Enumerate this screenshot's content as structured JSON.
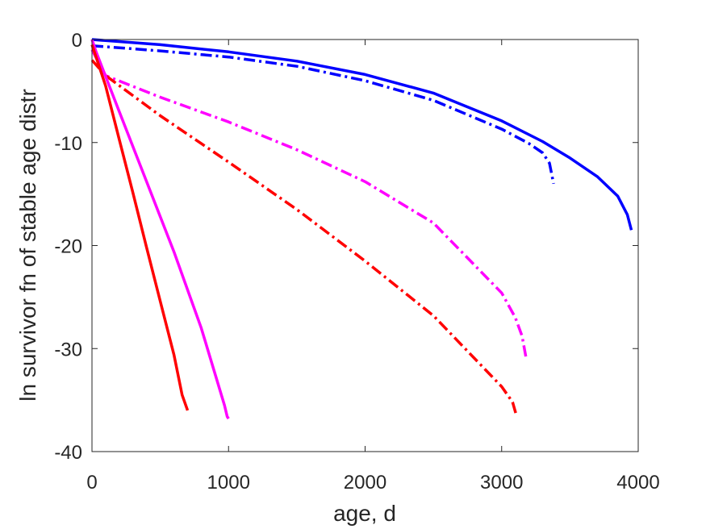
{
  "chart_data": {
    "type": "line",
    "title": "",
    "xlabel": "age, d",
    "ylabel": "ln survivor fn of stable age distr",
    "xlim": [
      0,
      4000
    ],
    "ylim": [
      -40,
      0
    ],
    "xticks": [
      0,
      1000,
      2000,
      3000,
      4000
    ],
    "yticks": [
      0,
      -10,
      -20,
      -30,
      -40
    ],
    "xtick_labels": [
      "0",
      "1000",
      "2000",
      "3000",
      "4000"
    ],
    "ytick_labels": [
      "0",
      "-10",
      "-20",
      "-30",
      "-40"
    ],
    "grid": false,
    "legend": "none",
    "series": [
      {
        "color": "#0000FF",
        "style": "solid",
        "points": [
          [
            0,
            0
          ],
          [
            500,
            -0.5
          ],
          [
            1000,
            -1.2
          ],
          [
            1500,
            -2.1
          ],
          [
            2000,
            -3.4
          ],
          [
            2500,
            -5.2
          ],
          [
            3000,
            -7.9
          ],
          [
            3300,
            -9.9
          ],
          [
            3500,
            -11.5
          ],
          [
            3700,
            -13.3
          ],
          [
            3850,
            -15.2
          ],
          [
            3920,
            -17.0
          ],
          [
            3950,
            -18.5
          ]
        ]
      },
      {
        "color": "#0000FF",
        "style": "dashdot",
        "points": [
          [
            0,
            -0.6
          ],
          [
            500,
            -1.1
          ],
          [
            1000,
            -1.7
          ],
          [
            1500,
            -2.6
          ],
          [
            2000,
            -4.0
          ],
          [
            2500,
            -5.9
          ],
          [
            3000,
            -8.7
          ],
          [
            3200,
            -10.1
          ],
          [
            3300,
            -11.0
          ],
          [
            3350,
            -12.0
          ],
          [
            3380,
            -14.0
          ]
        ]
      },
      {
        "color": "#FF00FF",
        "style": "dashdot",
        "points": [
          [
            0,
            -1.0
          ],
          [
            100,
            -3.5
          ],
          [
            500,
            -5.6
          ],
          [
            1000,
            -8.0
          ],
          [
            1500,
            -10.7
          ],
          [
            2000,
            -13.8
          ],
          [
            2500,
            -17.8
          ],
          [
            3000,
            -24.6
          ],
          [
            3100,
            -27.0
          ],
          [
            3150,
            -28.8
          ],
          [
            3180,
            -31.0
          ]
        ]
      },
      {
        "color": "#FF0000",
        "style": "dashdot",
        "points": [
          [
            0,
            -2.0
          ],
          [
            100,
            -3.5
          ],
          [
            500,
            -7.4
          ],
          [
            1000,
            -11.9
          ],
          [
            1500,
            -16.5
          ],
          [
            2000,
            -21.5
          ],
          [
            2500,
            -26.8
          ],
          [
            3000,
            -33.7
          ],
          [
            3080,
            -35.2
          ],
          [
            3110,
            -36.6
          ]
        ]
      },
      {
        "color": "#FF00FF",
        "style": "solid",
        "points": [
          [
            0,
            0
          ],
          [
            30,
            -1.2
          ],
          [
            200,
            -7.0
          ],
          [
            400,
            -13.8
          ],
          [
            600,
            -20.6
          ],
          [
            800,
            -28.0
          ],
          [
            970,
            -35.5
          ],
          [
            990,
            -36.6
          ],
          [
            1000,
            -36.8
          ]
        ]
      },
      {
        "color": "#FF0000",
        "style": "solid",
        "points": [
          [
            0,
            -0.5
          ],
          [
            100,
            -4.5
          ],
          [
            200,
            -9.7
          ],
          [
            300,
            -14.9
          ],
          [
            400,
            -20.2
          ],
          [
            500,
            -25.4
          ],
          [
            600,
            -30.6
          ],
          [
            660,
            -34.5
          ],
          [
            700,
            -36.0
          ]
        ]
      }
    ]
  }
}
